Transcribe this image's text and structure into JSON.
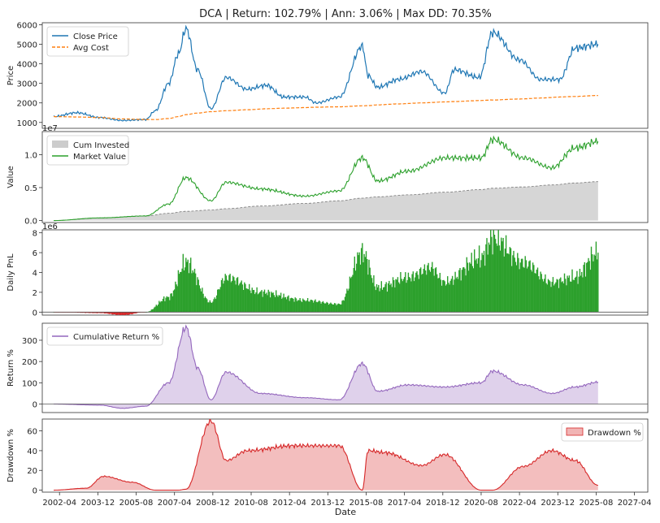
{
  "title": "DCA | Return: 102.79% | Ann: 3.06% | Max DD: 70.35%",
  "xlabel": "Date",
  "x_ticks": [
    "2002-04",
    "2003-12",
    "2005-08",
    "2007-04",
    "2008-12",
    "2010-08",
    "2012-04",
    "2013-12",
    "2015-08",
    "2017-04",
    "2018-12",
    "2020-08",
    "2022-04",
    "2023-12",
    "2025-08",
    "2027-04"
  ],
  "chart_data": [
    {
      "type": "line",
      "ylabel": "Price",
      "yticks": [
        "1000",
        "2000",
        "3000",
        "4000",
        "5000",
        "6000"
      ],
      "ylim": [
        700,
        6100
      ],
      "legend_position": "top-left",
      "x": [
        "2002-01",
        "2003-01",
        "2004-01",
        "2005-01",
        "2006-01",
        "2006-06",
        "2007-01",
        "2007-06",
        "2007-10",
        "2008-04",
        "2008-11",
        "2009-07",
        "2010-06",
        "2011-04",
        "2012-01",
        "2012-12",
        "2013-06",
        "2014-06",
        "2015-06",
        "2015-09",
        "2016-02",
        "2017-01",
        "2018-01",
        "2019-01",
        "2019-06",
        "2020-07",
        "2021-02",
        "2022-04",
        "2023-03",
        "2024-01",
        "2024-09",
        "2025-09"
      ],
      "series": [
        {
          "name": "Close Price",
          "color": "#1f77b4",
          "values": [
            1300,
            1500,
            1250,
            1100,
            1150,
            1600,
            3000,
            4500,
            5800,
            3700,
            1700,
            3300,
            2700,
            2900,
            2300,
            2300,
            2000,
            2300,
            4900,
            3400,
            2800,
            3200,
            3600,
            2500,
            3700,
            3300,
            5600,
            4200,
            3200,
            3200,
            4800,
            5000
          ]
        },
        {
          "name": "Avg Cost",
          "color": "#ff7f0e",
          "values": [
            1300,
            1280,
            1250,
            1180,
            1150,
            1150,
            1200,
            1300,
            1400,
            1480,
            1550,
            1600,
            1650,
            1700,
            1730,
            1760,
            1780,
            1800,
            1850,
            1860,
            1900,
            1950,
            2000,
            2050,
            2070,
            2120,
            2150,
            2200,
            2250,
            2300,
            2330,
            2380
          ]
        }
      ]
    },
    {
      "type": "area",
      "ylabel": "Value",
      "scale_label": "1e7",
      "yticks": [
        "0.0",
        "0.5",
        "1.0"
      ],
      "ylim": [
        -0.03,
        1.35
      ],
      "legend_position": "top-left",
      "x": [
        "2002-01",
        "2004-01",
        "2006-01",
        "2007-01",
        "2007-10",
        "2008-11",
        "2009-07",
        "2011-01",
        "2012-12",
        "2014-06",
        "2015-06",
        "2016-02",
        "2017-06",
        "2019-01",
        "2020-08",
        "2021-02",
        "2022-06",
        "2023-09",
        "2024-09",
        "2025-09"
      ],
      "series": [
        {
          "name": "Cum Invested",
          "color": "#cccccc",
          "values": [
            0,
            0.04,
            0.07,
            0.11,
            0.14,
            0.16,
            0.18,
            0.22,
            0.26,
            0.3,
            0.34,
            0.36,
            0.39,
            0.43,
            0.47,
            0.49,
            0.51,
            0.54,
            0.57,
            0.59
          ]
        },
        {
          "name": "Market Value",
          "color": "#2ca02c",
          "values": [
            0,
            0.04,
            0.07,
            0.25,
            0.65,
            0.3,
            0.58,
            0.48,
            0.37,
            0.45,
            0.95,
            0.6,
            0.75,
            0.95,
            0.95,
            1.23,
            0.95,
            0.8,
            1.1,
            1.2
          ]
        }
      ]
    },
    {
      "type": "bar",
      "ylabel": "Daily PnL",
      "scale_label": "1e6",
      "yticks": [
        "0",
        "2",
        "4",
        "6",
        "8"
      ],
      "ylim": [
        -0.3,
        8.3
      ],
      "x": [
        "2002-01",
        "2004-01",
        "2005-01",
        "2006-01",
        "2007-01",
        "2007-10",
        "2008-11",
        "2009-07",
        "2011-01",
        "2012-12",
        "2014-06",
        "2015-06",
        "2016-02",
        "2017-06",
        "2018-06",
        "2019-01",
        "2020-08",
        "2021-02",
        "2022-06",
        "2023-09",
        "2024-09",
        "2025-09"
      ],
      "series": [
        {
          "name": "Daily PnL",
          "color": "#2ca02c",
          "values": [
            0,
            -0.1,
            -0.3,
            0,
            1.5,
            5,
            1,
            3.5,
            2,
            1.2,
            0.8,
            6,
            2.5,
            3.5,
            4.5,
            3,
            5.5,
            7.5,
            5,
            3,
            3.5,
            6
          ]
        }
      ]
    },
    {
      "type": "area",
      "ylabel": "Return %",
      "yticks": [
        "0",
        "100",
        "200",
        "300"
      ],
      "ylim": [
        -40,
        380
      ],
      "legend_position": "top-left",
      "x": [
        "2002-01",
        "2004-01",
        "2005-01",
        "2006-01",
        "2007-01",
        "2007-10",
        "2008-04",
        "2008-11",
        "2009-07",
        "2011-01",
        "2012-12",
        "2014-06",
        "2015-06",
        "2016-02",
        "2017-06",
        "2019-01",
        "2020-08",
        "2021-02",
        "2022-06",
        "2023-09",
        "2024-09",
        "2025-09"
      ],
      "series": [
        {
          "name": "Cumulative Return %",
          "color": "#9467bd",
          "values": [
            0,
            -5,
            -20,
            -10,
            100,
            360,
            170,
            20,
            150,
            50,
            30,
            20,
            190,
            60,
            90,
            80,
            100,
            155,
            90,
            50,
            80,
            103
          ]
        }
      ]
    },
    {
      "type": "area",
      "ylabel": "Drawdown %",
      "yticks": [
        "0",
        "20",
        "40",
        "60"
      ],
      "ylim": [
        -2,
        72
      ],
      "legend_position": "top-right",
      "x": [
        "2002-01",
        "2003-06",
        "2004-03",
        "2005-06",
        "2006-06",
        "2007-06",
        "2007-10",
        "2008-11",
        "2009-07",
        "2010-06",
        "2012-06",
        "2014-06",
        "2015-06",
        "2015-09",
        "2016-06",
        "2018-01",
        "2019-01",
        "2020-08",
        "2021-02",
        "2022-06",
        "2023-09",
        "2024-09",
        "2025-09"
      ],
      "series": [
        {
          "name": "Drawdown %",
          "color": "#d62728",
          "values": [
            0,
            2,
            14,
            8,
            0,
            0,
            1,
            70,
            30,
            40,
            45,
            45,
            0,
            40,
            38,
            25,
            36,
            0,
            0,
            24,
            40,
            30,
            5
          ]
        }
      ]
    }
  ]
}
